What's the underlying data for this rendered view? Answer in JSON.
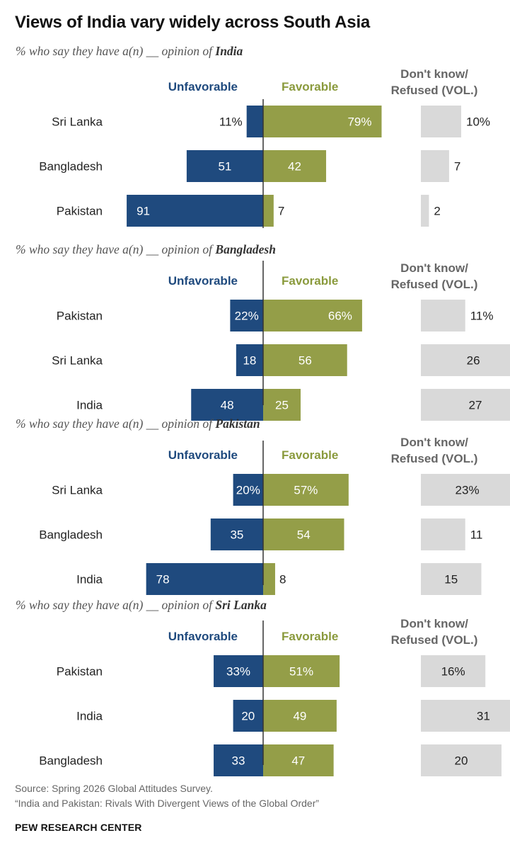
{
  "title": "Views of India vary widely across South Asia",
  "colors": {
    "unfavorable": "#1f4a7e",
    "favorable": "#949e48",
    "dont_know": "#d9d9d9",
    "unfavorable_header": "#1f4a7e",
    "favorable_header": "#8a9a3c",
    "dont_know_header": "#666666"
  },
  "chart_data": [
    {
      "type": "bar",
      "subtitle_prefix": "% who say they have a(n) __ opinion of ",
      "subtitle_country": "India",
      "legend": {
        "unfavorable": "Unfavorable",
        "favorable": "Favorable",
        "dont_know_line1": "Don't know/",
        "dont_know_line2": "Refused (VOL.)"
      },
      "categories": [
        "Sri Lanka",
        "Bangladesh",
        "Pakistan"
      ],
      "series": [
        {
          "name": "Unfavorable",
          "values": [
            11,
            51,
            91
          ],
          "labels": [
            "11%",
            "51",
            "91"
          ]
        },
        {
          "name": "Favorable",
          "values": [
            79,
            42,
            7
          ],
          "labels": [
            "79%",
            "42",
            "7"
          ]
        },
        {
          "name": "Don't know/Refused (VOL.)",
          "values": [
            10,
            7,
            2
          ],
          "labels": [
            "10%",
            "7",
            "2"
          ]
        }
      ]
    },
    {
      "type": "bar",
      "subtitle_prefix": "% who say they have a(n) __ opinion of ",
      "subtitle_country": "Bangladesh",
      "legend": {
        "unfavorable": "Unfavorable",
        "favorable": "Favorable",
        "dont_know_line1": "Don't know/",
        "dont_know_line2": "Refused (VOL.)"
      },
      "categories": [
        "Pakistan",
        "Sri Lanka",
        "India"
      ],
      "series": [
        {
          "name": "Unfavorable",
          "values": [
            22,
            18,
            48
          ],
          "labels": [
            "22%",
            "18",
            "48"
          ]
        },
        {
          "name": "Favorable",
          "values": [
            66,
            56,
            25
          ],
          "labels": [
            "66%",
            "56",
            "25"
          ]
        },
        {
          "name": "Don't know/Refused (VOL.)",
          "values": [
            11,
            26,
            27
          ],
          "labels": [
            "11%",
            "26",
            "27"
          ]
        }
      ]
    },
    {
      "type": "bar",
      "subtitle_prefix": "% who say they have a(n) __ opinion of ",
      "subtitle_country": "Pakistan",
      "legend": {
        "unfavorable": "Unfavorable",
        "favorable": "Favorable",
        "dont_know_line1": "Don't know/",
        "dont_know_line2": "Refused (VOL.)"
      },
      "categories": [
        "Sri Lanka",
        "Bangladesh",
        "India"
      ],
      "series": [
        {
          "name": "Unfavorable",
          "values": [
            20,
            35,
            78
          ],
          "labels": [
            "20%",
            "35",
            "78"
          ]
        },
        {
          "name": "Favorable",
          "values": [
            57,
            54,
            8
          ],
          "labels": [
            "57%",
            "54",
            "8"
          ]
        },
        {
          "name": "Don't know/Refused (VOL.)",
          "values": [
            23,
            11,
            15
          ],
          "labels": [
            "23%",
            "11",
            "15"
          ]
        }
      ]
    },
    {
      "type": "bar",
      "subtitle_prefix": "% who say they have a(n) __ opinion of ",
      "subtitle_country": "Sri Lanka",
      "legend": {
        "unfavorable": "Unfavorable",
        "favorable": "Favorable",
        "dont_know_line1": "Don't know/",
        "dont_know_line2": "Refused (VOL.)"
      },
      "categories": [
        "Pakistan",
        "India",
        "Bangladesh"
      ],
      "series": [
        {
          "name": "Unfavorable",
          "values": [
            33,
            20,
            33
          ],
          "labels": [
            "33%",
            "20",
            "33"
          ]
        },
        {
          "name": "Favorable",
          "values": [
            51,
            49,
            47
          ],
          "labels": [
            "51%",
            "49",
            "47"
          ]
        },
        {
          "name": "Don't know/Refused (VOL.)",
          "values": [
            16,
            31,
            20
          ],
          "labels": [
            "16%",
            "31",
            "20"
          ]
        }
      ]
    }
  ],
  "footer": {
    "source": "Source: Spring 2026 Global Attitudes Survey.",
    "report": "“India and Pakistan: Rivals With Divergent Views of the Global Order”",
    "org": "PEW RESEARCH CENTER"
  }
}
